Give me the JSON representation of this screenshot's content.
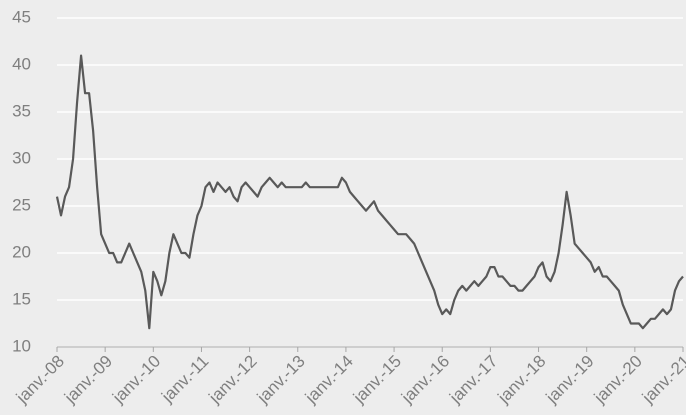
{
  "chart_data": {
    "type": "line",
    "x": [
      "2008-01",
      "2008-02",
      "2008-03",
      "2008-04",
      "2008-05",
      "2008-06",
      "2008-07",
      "2008-08",
      "2008-09",
      "2008-10",
      "2008-11",
      "2008-12",
      "2009-01",
      "2009-02",
      "2009-03",
      "2009-04",
      "2009-05",
      "2009-06",
      "2009-07",
      "2009-08",
      "2009-09",
      "2009-10",
      "2009-11",
      "2009-12",
      "2010-01",
      "2010-02",
      "2010-03",
      "2010-04",
      "2010-05",
      "2010-06",
      "2010-07",
      "2010-08",
      "2010-09",
      "2010-10",
      "2010-11",
      "2010-12",
      "2011-01",
      "2011-02",
      "2011-03",
      "2011-04",
      "2011-05",
      "2011-06",
      "2011-07",
      "2011-08",
      "2011-09",
      "2011-10",
      "2011-11",
      "2011-12",
      "2012-01",
      "2012-02",
      "2012-03",
      "2012-04",
      "2012-05",
      "2012-06",
      "2012-07",
      "2012-08",
      "2012-09",
      "2012-10",
      "2012-11",
      "2012-12",
      "2013-01",
      "2013-02",
      "2013-03",
      "2013-04",
      "2013-05",
      "2013-06",
      "2013-07",
      "2013-08",
      "2013-09",
      "2013-10",
      "2013-11",
      "2013-12",
      "2014-01",
      "2014-02",
      "2014-03",
      "2014-04",
      "2014-05",
      "2014-06",
      "2014-07",
      "2014-08",
      "2014-09",
      "2014-10",
      "2014-11",
      "2014-12",
      "2015-01",
      "2015-02",
      "2015-03",
      "2015-04",
      "2015-05",
      "2015-06",
      "2015-07",
      "2015-08",
      "2015-09",
      "2015-10",
      "2015-11",
      "2015-12",
      "2016-01",
      "2016-02",
      "2016-03",
      "2016-04",
      "2016-05",
      "2016-06",
      "2016-07",
      "2016-08",
      "2016-09",
      "2016-10",
      "2016-11",
      "2016-12",
      "2017-01",
      "2017-02",
      "2017-03",
      "2017-04",
      "2017-05",
      "2017-06",
      "2017-07",
      "2017-08",
      "2017-09",
      "2017-10",
      "2017-11",
      "2017-12",
      "2018-01",
      "2018-02",
      "2018-03",
      "2018-04",
      "2018-05",
      "2018-06",
      "2018-07",
      "2018-08",
      "2018-09",
      "2018-10",
      "2018-11",
      "2018-12",
      "2019-01",
      "2019-02",
      "2019-03",
      "2019-04",
      "2019-05",
      "2019-06",
      "2019-07",
      "2019-08",
      "2019-09",
      "2019-10",
      "2019-11",
      "2019-12",
      "2020-01",
      "2020-02",
      "2020-03",
      "2020-04",
      "2020-05",
      "2020-06",
      "2020-07",
      "2020-08",
      "2020-09",
      "2020-10",
      "2020-11",
      "2020-12",
      "2021-01"
    ],
    "series": [
      {
        "color": "#595959",
        "values": [
          26,
          24,
          26,
          27,
          30,
          36,
          41,
          37,
          37,
          33,
          27,
          22,
          21,
          20,
          20,
          19,
          19,
          20,
          21,
          20,
          19,
          18,
          16,
          12,
          18,
          17,
          15.5,
          17,
          20,
          22,
          21,
          20,
          20,
          19.5,
          22,
          24,
          25,
          27,
          27.5,
          26.5,
          27.5,
          27,
          26.5,
          27,
          26,
          25.5,
          27,
          27.5,
          27,
          26.5,
          26,
          27,
          27.5,
          28,
          27.5,
          27,
          27.5,
          27,
          27,
          27,
          27,
          27,
          27.5,
          27,
          27,
          27,
          27,
          27,
          27,
          27,
          27,
          28,
          27.5,
          26.5,
          26,
          25.5,
          25,
          24.5,
          25,
          25.5,
          24.5,
          24,
          23.5,
          23,
          22.5,
          22,
          22,
          22,
          21.5,
          21,
          20,
          19,
          18,
          17,
          16,
          14.5,
          13.5,
          14,
          13.5,
          15,
          16,
          16.5,
          16,
          16.5,
          17,
          16.5,
          17,
          17.5,
          18.5,
          18.5,
          17.5,
          17.5,
          17,
          16.5,
          16.5,
          16,
          16,
          16.5,
          17,
          17.5,
          18.5,
          19,
          17.5,
          17,
          18,
          20,
          23,
          26.5,
          24,
          21,
          20.5,
          20,
          19.5,
          19,
          18,
          18.5,
          17.5,
          17.5,
          17,
          16.5,
          16,
          14.5,
          13.5,
          12.5,
          12.5,
          12.5,
          12,
          12.5,
          13,
          13,
          13.5,
          14,
          13.5,
          14,
          16,
          17,
          17.5
        ]
      }
    ],
    "xlim": [
      "2008-01",
      "2021-01"
    ],
    "xticks": [
      {
        "value": "2008-01",
        "label": "janv.-08"
      },
      {
        "value": "2009-01",
        "label": "janv.-09"
      },
      {
        "value": "2010-01",
        "label": "janv.-10"
      },
      {
        "value": "2011-01",
        "label": "janv.-11"
      },
      {
        "value": "2012-01",
        "label": "janv.-12"
      },
      {
        "value": "2013-01",
        "label": "janv.-13"
      },
      {
        "value": "2014-01",
        "label": "janv.-14"
      },
      {
        "value": "2015-01",
        "label": "janv.-15"
      },
      {
        "value": "2016-01",
        "label": "janv.-16"
      },
      {
        "value": "2017-01",
        "label": "janv.-17"
      },
      {
        "value": "2018-01",
        "label": "janv.-18"
      },
      {
        "value": "2019-01",
        "label": "janv.-19"
      },
      {
        "value": "2020-01",
        "label": "janv.-20"
      },
      {
        "value": "2021-01",
        "label": "janv.-21"
      }
    ],
    "ylim": [
      10,
      45
    ],
    "yticks": [
      10,
      15,
      20,
      25,
      30,
      35,
      40,
      45
    ],
    "grid": true
  }
}
